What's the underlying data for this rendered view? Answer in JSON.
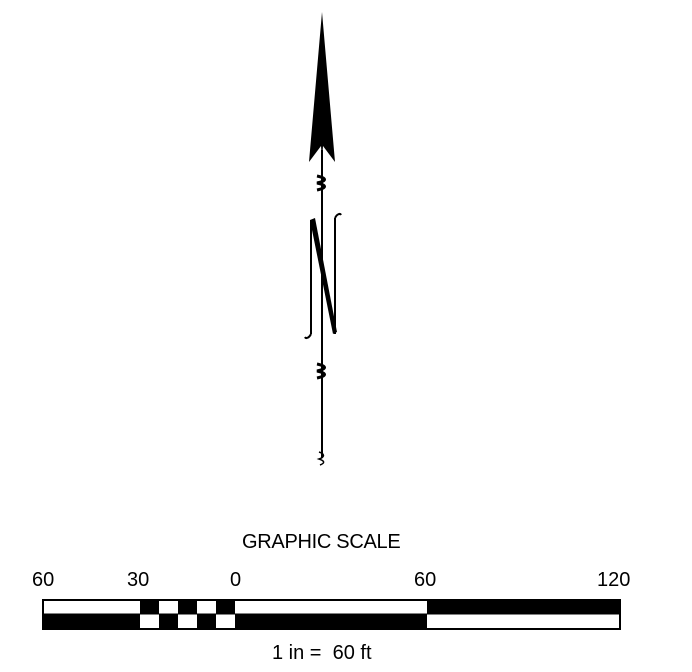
{
  "north_arrow": {
    "letter": "N",
    "icon": "north-arrow-icon"
  },
  "graphic_scale": {
    "title": "GRAPHIC SCALE",
    "tick_labels": [
      "60",
      "30",
      "0",
      "60",
      "120"
    ],
    "ratio": "1 in =  60 ft",
    "colors": {
      "ink": "#000000",
      "paper": "#ffffff"
    }
  }
}
